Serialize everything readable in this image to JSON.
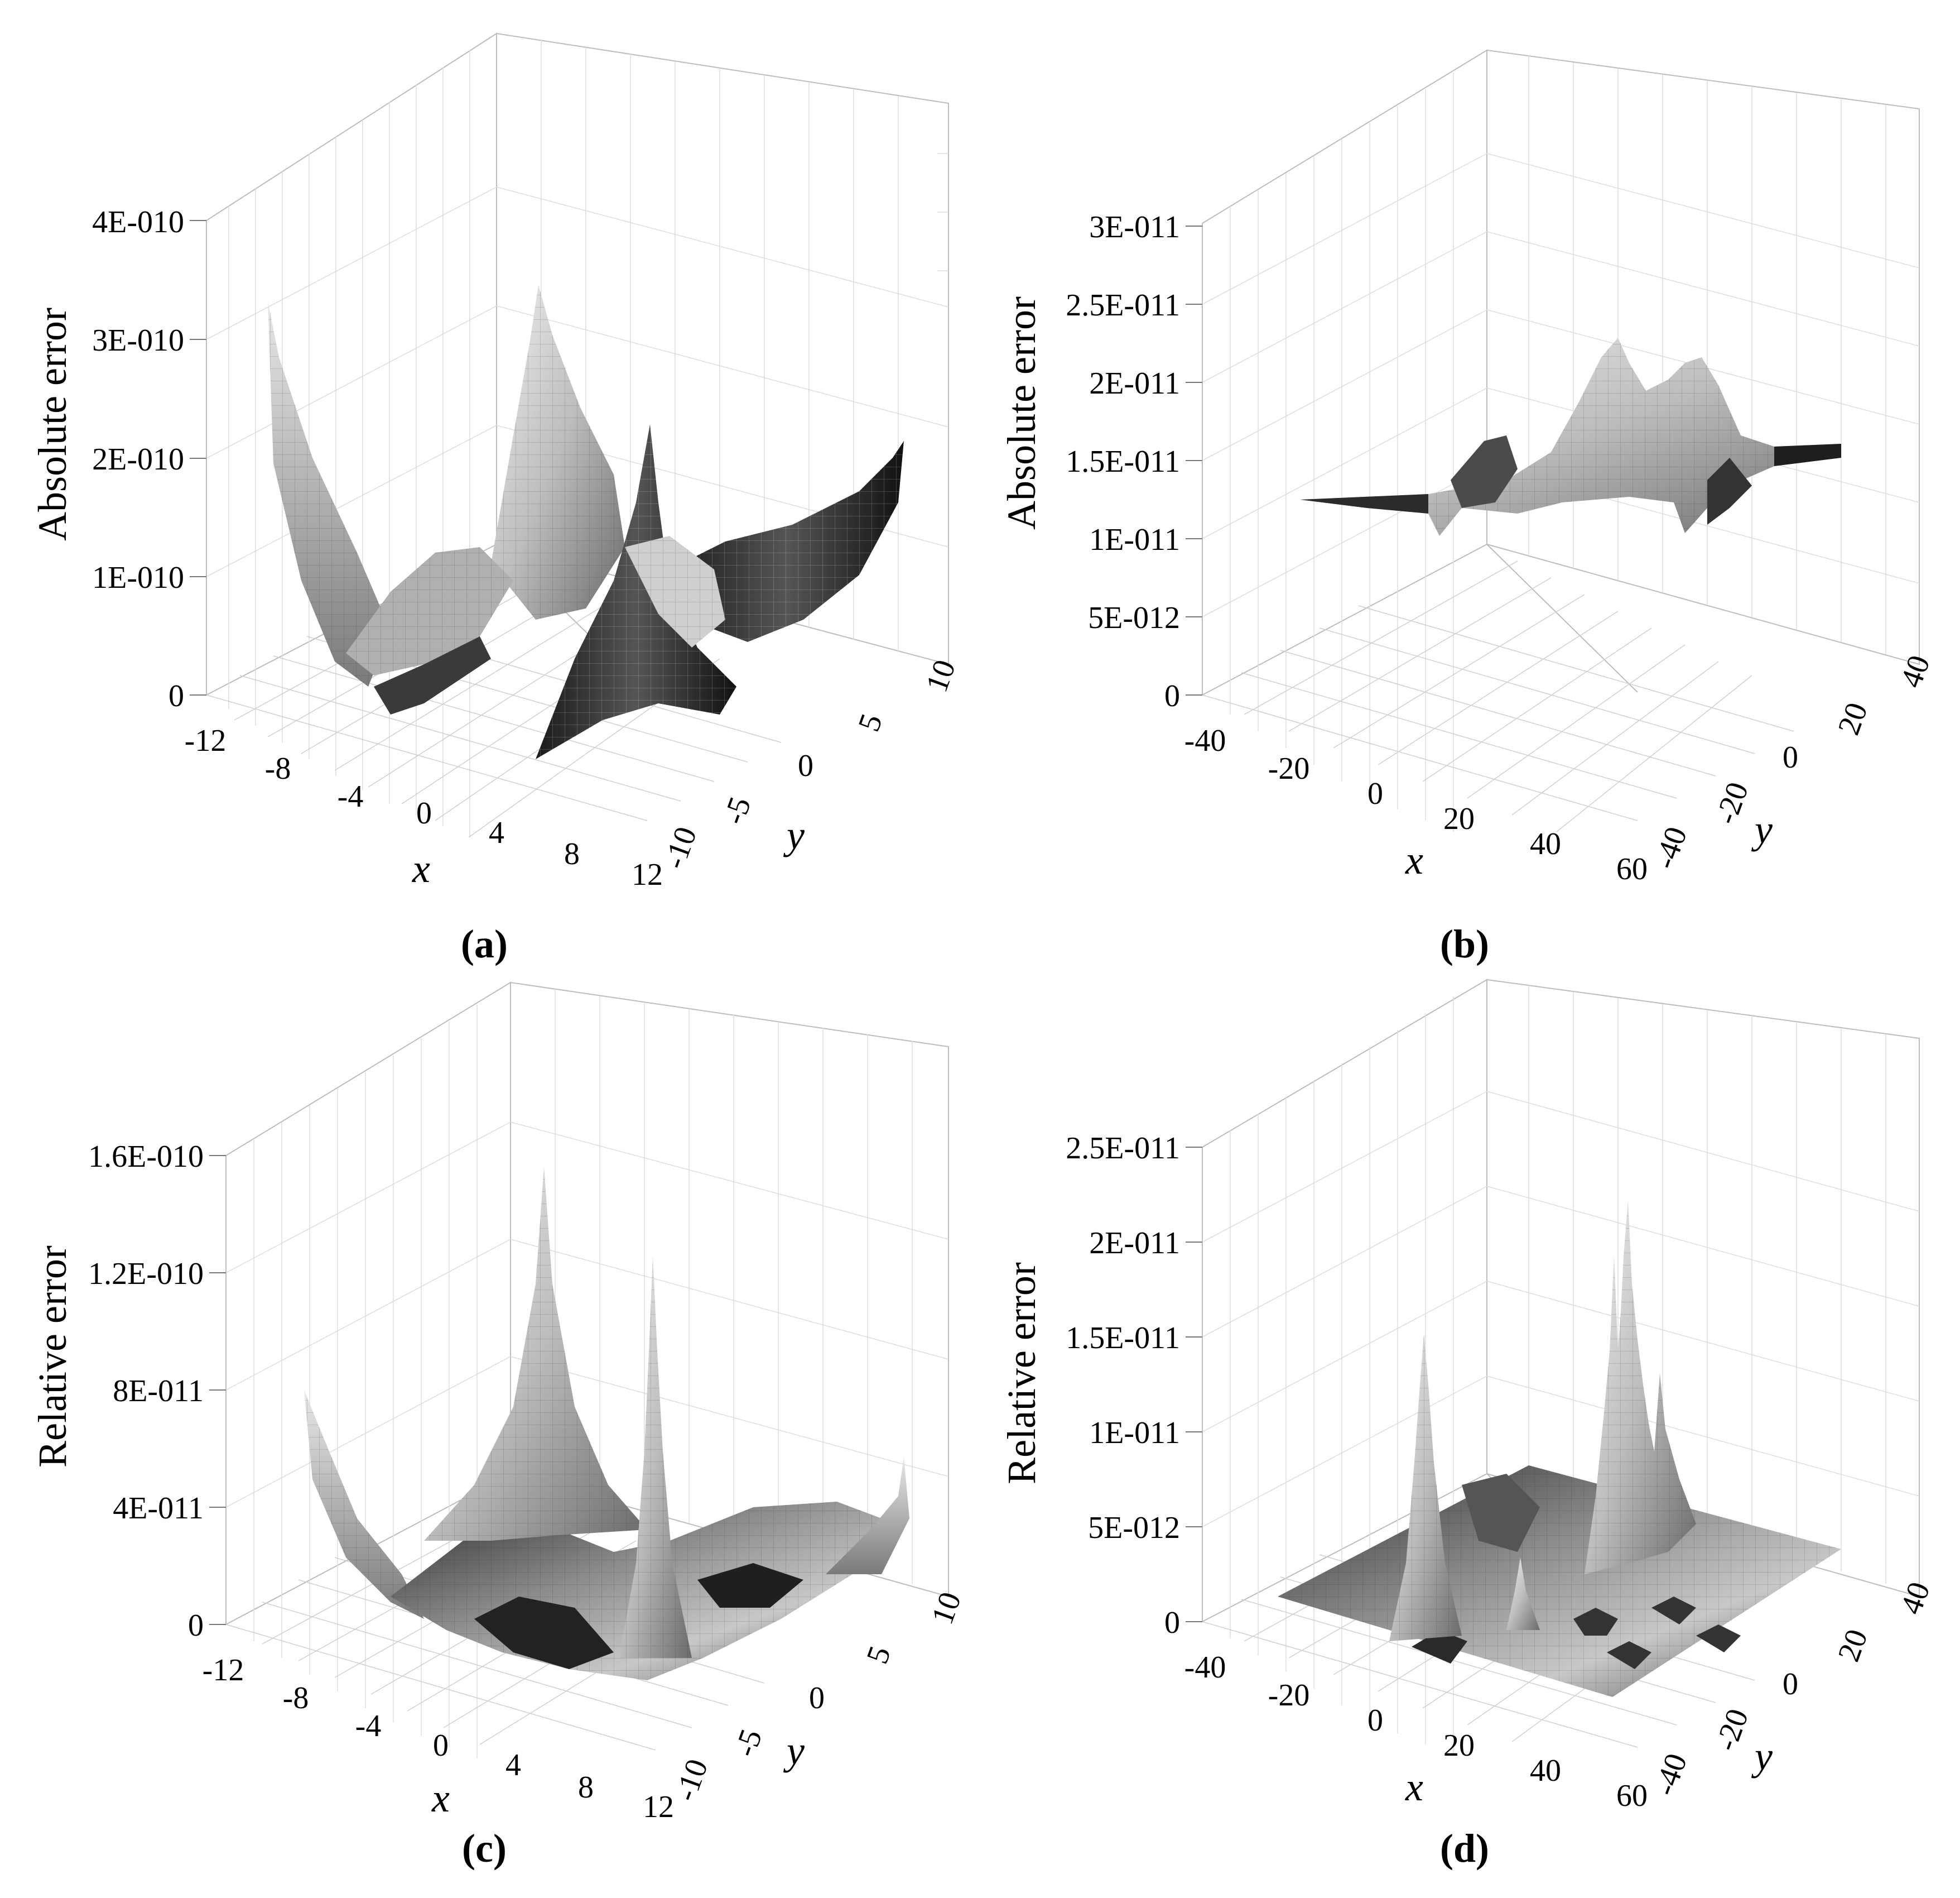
{
  "panels": [
    {
      "caption": "(a)",
      "zlabel": "Absolute error",
      "xlabel": "x",
      "ylabel": "y",
      "zticks": [
        "0",
        "1E-010",
        "2E-010",
        "3E-010",
        "4E-010"
      ],
      "xticks": [
        "-12",
        "-8",
        "-4",
        "0",
        "4",
        "8",
        "12"
      ],
      "yticks": [
        "-10",
        "-5",
        "0",
        "5",
        "10"
      ]
    },
    {
      "caption": "(b)",
      "zlabel": "Absolute error",
      "xlabel": "x",
      "ylabel": "y",
      "zticks": [
        "0",
        "5E-012",
        "1E-011",
        "1.5E-011",
        "2E-011",
        "2.5E-011",
        "3E-011"
      ],
      "xticks": [
        "-40",
        "-20",
        "0",
        "20",
        "40",
        "60"
      ],
      "yticks": [
        "-40",
        "-20",
        "0",
        "20",
        "40"
      ]
    },
    {
      "caption": "(c)",
      "zlabel": "Relative error",
      "xlabel": "x",
      "ylabel": "y",
      "zticks": [
        "0",
        "4E-011",
        "8E-011",
        "1.2E-010",
        "1.6E-010"
      ],
      "xticks": [
        "-12",
        "-8",
        "-4",
        "0",
        "4",
        "8",
        "12"
      ],
      "yticks": [
        "-10",
        "-5",
        "0",
        "5",
        "10"
      ]
    },
    {
      "caption": "(d)",
      "zlabel": "Relative error",
      "xlabel": "x",
      "ylabel": "y",
      "zticks": [
        "0",
        "5E-012",
        "1E-011",
        "1.5E-011",
        "2E-011",
        "2.5E-011"
      ],
      "xticks": [
        "-40",
        "-20",
        "0",
        "20",
        "40",
        "60"
      ],
      "yticks": [
        "-40",
        "-20",
        "0",
        "20",
        "40"
      ]
    }
  ],
  "chart_data": [
    {
      "type": "surface",
      "panel": "(a)",
      "quantity": "Absolute error",
      "x_range": [
        -12,
        12
      ],
      "y_range": [
        -10,
        10
      ],
      "z_range": [
        0,
        4e-10
      ],
      "peaks": [
        {
          "x": -12,
          "y": -10,
          "z": 3.3e-10
        },
        {
          "x": 0,
          "y": 10,
          "z": 3.5e-10
        },
        {
          "x": 4,
          "y": 5,
          "z": 2.2e-10
        },
        {
          "x": 12,
          "y": 10,
          "z": 2e-10
        }
      ],
      "colormap": "grayscale"
    },
    {
      "type": "surface",
      "panel": "(b)",
      "quantity": "Absolute error",
      "x_range": [
        -40,
        60
      ],
      "y_range": [
        -40,
        40
      ],
      "z_range": [
        0,
        3e-11
      ],
      "peaks": [
        {
          "x": 0,
          "y": 10,
          "z": 2.5e-11
        },
        {
          "x": 20,
          "y": 10,
          "z": 2.2e-11
        },
        {
          "x": 10,
          "y": 0,
          "z": 1.7e-11
        }
      ],
      "colormap": "grayscale"
    },
    {
      "type": "surface",
      "panel": "(c)",
      "quantity": "Relative error",
      "x_range": [
        -12,
        12
      ],
      "y_range": [
        -10,
        10
      ],
      "z_range": [
        0,
        1.6e-10
      ],
      "peaks": [
        {
          "x": 0,
          "y": 0,
          "z": 1.45e-10
        },
        {
          "x": 4,
          "y": -2,
          "z": 1.1e-10
        },
        {
          "x": -12,
          "y": -10,
          "z": 6e-11
        },
        {
          "x": 12,
          "y": 10,
          "z": 4e-11
        }
      ],
      "colormap": "grayscale"
    },
    {
      "type": "surface",
      "panel": "(d)",
      "quantity": "Relative error",
      "x_range": [
        -40,
        60
      ],
      "y_range": [
        -40,
        40
      ],
      "z_range": [
        0,
        2.5e-11
      ],
      "peaks": [
        {
          "x": -20,
          "y": 0,
          "z": 1.4e-11
        },
        {
          "x": 20,
          "y": 20,
          "z": 2.2e-11
        },
        {
          "x": 25,
          "y": 20,
          "z": 2e-11
        },
        {
          "x": 30,
          "y": 20,
          "z": 1.6e-11
        },
        {
          "x": 0,
          "y": -10,
          "z": 5e-12
        }
      ],
      "colormap": "grayscale"
    }
  ]
}
